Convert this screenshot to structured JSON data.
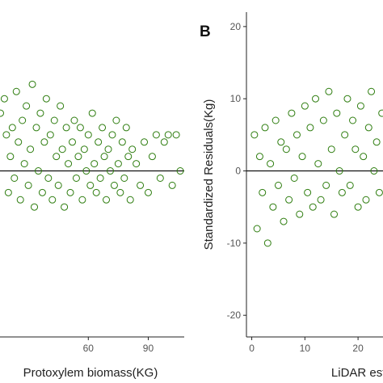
{
  "colors": {
    "points": "#2e7d0f",
    "axis": "#222222",
    "tick_text": "#555555"
  },
  "chart_data": [
    {
      "type": "scatter",
      "panel": "left",
      "xlabel": "Protoxylem biomass(KG)",
      "ylabel": "",
      "x_ticks": [
        60,
        90
      ],
      "xlim": [
        15,
        108
      ],
      "ylim": [
        -23,
        22
      ],
      "reference_line_y": 0,
      "grid": false,
      "marker": "open-circle",
      "points": [
        [
          16,
          8
        ],
        [
          18,
          10
        ],
        [
          19,
          5
        ],
        [
          20,
          -3
        ],
        [
          21,
          2
        ],
        [
          22,
          6
        ],
        [
          23,
          -1
        ],
        [
          24,
          11
        ],
        [
          25,
          4
        ],
        [
          26,
          -4
        ],
        [
          27,
          7
        ],
        [
          28,
          1
        ],
        [
          29,
          9
        ],
        [
          30,
          -2
        ],
        [
          31,
          3
        ],
        [
          32,
          12
        ],
        [
          33,
          -5
        ],
        [
          34,
          6
        ],
        [
          35,
          0
        ],
        [
          36,
          8
        ],
        [
          37,
          -3
        ],
        [
          38,
          4
        ],
        [
          39,
          10
        ],
        [
          40,
          -1
        ],
        [
          41,
          5
        ],
        [
          42,
          -4
        ],
        [
          43,
          7
        ],
        [
          44,
          2
        ],
        [
          45,
          -2
        ],
        [
          46,
          9
        ],
        [
          47,
          3
        ],
        [
          48,
          -5
        ],
        [
          49,
          6
        ],
        [
          50,
          1
        ],
        [
          51,
          -3
        ],
        [
          52,
          4
        ],
        [
          53,
          7
        ],
        [
          54,
          -1
        ],
        [
          55,
          2
        ],
        [
          56,
          6
        ],
        [
          57,
          -4
        ],
        [
          58,
          3
        ],
        [
          59,
          0
        ],
        [
          60,
          5
        ],
        [
          61,
          -2
        ],
        [
          62,
          8
        ],
        [
          63,
          1
        ],
        [
          64,
          -3
        ],
        [
          65,
          4
        ],
        [
          66,
          -1
        ],
        [
          67,
          6
        ],
        [
          68,
          2
        ],
        [
          69,
          -4
        ],
        [
          70,
          3
        ],
        [
          71,
          0
        ],
        [
          72,
          5
        ],
        [
          73,
          -2
        ],
        [
          74,
          7
        ],
        [
          75,
          1
        ],
        [
          76,
          -3
        ],
        [
          77,
          4
        ],
        [
          78,
          -1
        ],
        [
          79,
          6
        ],
        [
          80,
          2
        ],
        [
          81,
          -4
        ],
        [
          82,
          3
        ],
        [
          84,
          1
        ],
        [
          86,
          -2
        ],
        [
          88,
          4
        ],
        [
          90,
          -3
        ],
        [
          92,
          2
        ],
        [
          94,
          5
        ],
        [
          96,
          -1
        ],
        [
          98,
          4
        ],
        [
          100,
          5
        ],
        [
          102,
          -2
        ],
        [
          104,
          5
        ],
        [
          106,
          0
        ]
      ]
    },
    {
      "type": "scatter",
      "panel": "B",
      "xlabel": "LiDAR estimate",
      "ylabel": "Standardized Residuals(Kg)",
      "x_ticks": [
        0,
        10,
        20
      ],
      "y_ticks": [
        -20,
        -10,
        0,
        10,
        20
      ],
      "xlim": [
        -1,
        25
      ],
      "ylim": [
        -23,
        22
      ],
      "reference_line_y": 0,
      "grid": false,
      "marker": "open-circle",
      "points": [
        [
          0.5,
          5
        ],
        [
          1,
          -8
        ],
        [
          1.5,
          2
        ],
        [
          2,
          -3
        ],
        [
          2.5,
          6
        ],
        [
          3,
          -10
        ],
        [
          3.5,
          1
        ],
        [
          4,
          -5
        ],
        [
          4.5,
          7
        ],
        [
          5,
          -2
        ],
        [
          5.5,
          4
        ],
        [
          6,
          -7
        ],
        [
          6.5,
          3
        ],
        [
          7,
          -4
        ],
        [
          7.5,
          8
        ],
        [
          8,
          -1
        ],
        [
          8.5,
          5
        ],
        [
          9,
          -6
        ],
        [
          9.5,
          2
        ],
        [
          10,
          9
        ],
        [
          10.5,
          -3
        ],
        [
          11,
          6
        ],
        [
          11.5,
          -5
        ],
        [
          12,
          10
        ],
        [
          12.5,
          1
        ],
        [
          13,
          -4
        ],
        [
          13.5,
          7
        ],
        [
          14,
          -2
        ],
        [
          14.5,
          11
        ],
        [
          15,
          3
        ],
        [
          15.5,
          -6
        ],
        [
          16,
          8
        ],
        [
          16.5,
          0
        ],
        [
          17,
          -3
        ],
        [
          17.5,
          5
        ],
        [
          18,
          10
        ],
        [
          18.5,
          -2
        ],
        [
          19,
          7
        ],
        [
          19.5,
          3
        ],
        [
          20,
          -5
        ],
        [
          20.5,
          9
        ],
        [
          21,
          2
        ],
        [
          21.5,
          -4
        ],
        [
          22,
          6
        ],
        [
          22.5,
          11
        ],
        [
          23,
          0
        ],
        [
          23.5,
          4
        ],
        [
          24,
          -3
        ],
        [
          24.5,
          8
        ]
      ]
    }
  ],
  "panel_tag": "B"
}
